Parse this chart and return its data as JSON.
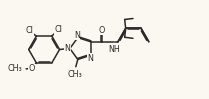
{
  "bg_color": "#faf8f0",
  "line_color": "#2a2a2a",
  "line_width": 1.1,
  "font_size": 5.8,
  "figsize": [
    2.09,
    0.99
  ],
  "dpi": 100,
  "xlim": [
    0,
    10.5
  ],
  "ylim": [
    0.5,
    5.5
  ]
}
